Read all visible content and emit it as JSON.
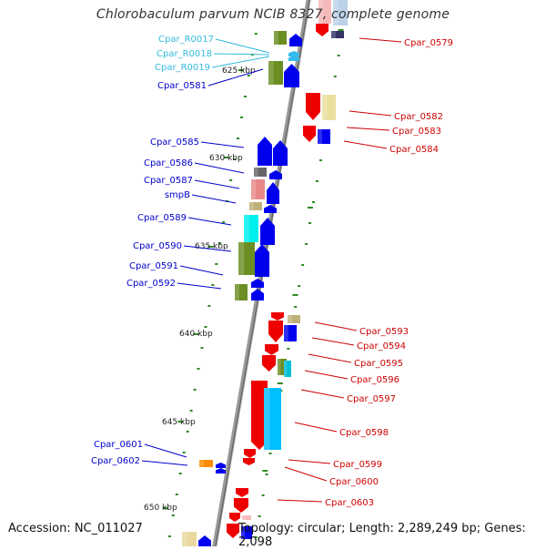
{
  "title": "Chlorobaculum parvum NCIB 8327, complete genome",
  "footer": {
    "accession": "Accession: NC_011027",
    "summary": "Topology: circular; Length: 2,289,249 bp; Genes: 2,098"
  },
  "colors": {
    "backbone": "#888888",
    "forward_label": "#0000cc",
    "reverse_label": "#cc0000",
    "rna_label": "#33bbdd",
    "tick": "#2e8b22"
  },
  "kbp_markers": [
    "625 kbp",
    "630 kbp",
    "635 kbp",
    "640 kbp",
    "645 kbp",
    "650 kbp"
  ],
  "left_labels": [
    {
      "text": "Cpar_R0017",
      "type": "rna"
    },
    {
      "text": "Cpar_R0018",
      "type": "rna"
    },
    {
      "text": "Cpar_R0019",
      "type": "rna"
    },
    {
      "text": "Cpar_0581",
      "type": "forward"
    },
    {
      "text": "Cpar_0585",
      "type": "forward"
    },
    {
      "text": "Cpar_0586",
      "type": "forward"
    },
    {
      "text": "Cpar_0587",
      "type": "forward"
    },
    {
      "text": "smpB",
      "type": "forward"
    },
    {
      "text": "Cpar_0589",
      "type": "forward"
    },
    {
      "text": "Cpar_0590",
      "type": "forward"
    },
    {
      "text": "Cpar_0591",
      "type": "forward"
    },
    {
      "text": "Cpar_0592",
      "type": "forward"
    },
    {
      "text": "Cpar_0601",
      "type": "forward"
    },
    {
      "text": "Cpar_0602",
      "type": "forward"
    }
  ],
  "right_labels": [
    {
      "text": "Cpar_0579"
    },
    {
      "text": "Cpar_0582"
    },
    {
      "text": "Cpar_0583"
    },
    {
      "text": "Cpar_0584"
    },
    {
      "text": "Cpar_0593"
    },
    {
      "text": "Cpar_0594"
    },
    {
      "text": "Cpar_0595"
    },
    {
      "text": "Cpar_0596"
    },
    {
      "text": "Cpar_0597"
    },
    {
      "text": "Cpar_0598"
    },
    {
      "text": "Cpar_0599"
    },
    {
      "text": "Cpar_0600"
    },
    {
      "text": "Cpar_0603"
    }
  ]
}
